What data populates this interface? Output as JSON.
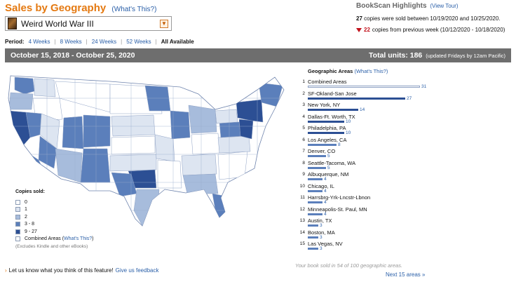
{
  "header": {
    "title": "Sales by Geography",
    "whats_this": "What's This?",
    "book": "Weird World War III",
    "period_label": "Period:",
    "periods": [
      "4 Weeks",
      "8 Weeks",
      "24 Weeks",
      "52 Weeks",
      "All Available"
    ]
  },
  "highlights": {
    "title": "BookScan Highlights",
    "view_tour": "View Tour",
    "copies_this_week": "27",
    "line1_text": "copies were sold between 10/19/2020 and 10/25/2020.",
    "copies_prev_delta": "22",
    "line2_text": "copies from previous week (10/12/2020 - 10/18/2020)"
  },
  "summary_bar": {
    "date_range": "October 15, 2018 - October 25, 2020",
    "total_label": "Total units: 186",
    "total_note": "(updated Fridays by 12am Pacific)"
  },
  "legend": {
    "title": "Copies sold:",
    "items": [
      "0",
      "1",
      "2",
      "3 - 8",
      "9 - 27"
    ],
    "combined": "Combined Areas",
    "combined_link": "What's This?",
    "excludes": "(Excludes Kindle and other eBooks)"
  },
  "colors": {
    "c0": "#ffffff",
    "c1": "#dde5f1",
    "c2": "#a7bcdc",
    "c3": "#5b7fbb",
    "c4": "#2c4f94",
    "accent": "#e47911",
    "link": "#2a5fa8"
  },
  "areas": {
    "title": "Geographic Areas",
    "whats_this": "What's This?",
    "items": [
      {
        "rank": "1",
        "name": "Combined Areas",
        "value": 31
      },
      {
        "rank": "2",
        "name": "SF-Okland-San Jose",
        "value": 27
      },
      {
        "rank": "3",
        "name": "New York, NY",
        "value": 14
      },
      {
        "rank": "4",
        "name": "Dallas-Ft. Worth, TX",
        "value": 10
      },
      {
        "rank": "5",
        "name": "Philadelphia, PA",
        "value": 10
      },
      {
        "rank": "6",
        "name": "Los Angeles, CA",
        "value": 8
      },
      {
        "rank": "7",
        "name": "Denver, CO",
        "value": 5
      },
      {
        "rank": "8",
        "name": "Seattle-Tacoma, WA",
        "value": 5
      },
      {
        "rank": "9",
        "name": "Albuquerque, NM",
        "value": 4
      },
      {
        "rank": "10",
        "name": "Chicago, IL",
        "value": 4
      },
      {
        "rank": "11",
        "name": "Harrsbrg-Yrk-Lncstr-Lbnon",
        "value": 4
      },
      {
        "rank": "12",
        "name": "Minneapolis-St. Paul, MN",
        "value": 4
      },
      {
        "rank": "13",
        "name": "Austin, TX",
        "value": 3
      },
      {
        "rank": "14",
        "name": "Boston, MA",
        "value": 3
      },
      {
        "rank": "15",
        "name": "Las Vegas, NV",
        "value": 3
      }
    ],
    "sold_note": "Your book sold in 54 of 100 geographic areas.",
    "next": "Next 15 areas »"
  },
  "feedback": {
    "text": "Let us know what you think of this feature!",
    "link": "Give us feedback"
  }
}
